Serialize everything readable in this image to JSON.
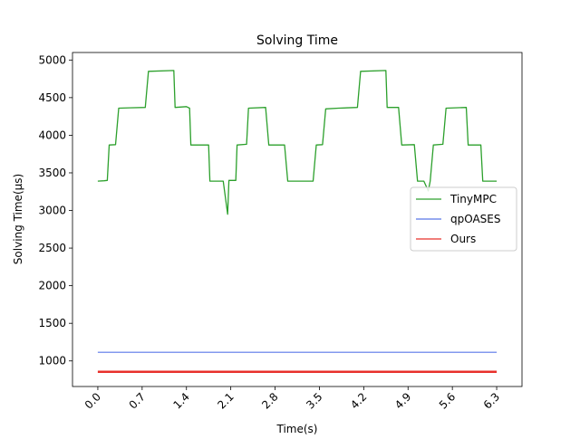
{
  "chart_data": {
    "type": "line",
    "title": "Solving Time",
    "xlabel": "Time(s)",
    "ylabel": "Solving Time(μs)",
    "xlim": [
      -0.4,
      6.7
    ],
    "ylim": [
      660,
      5100
    ],
    "x_ticks": [
      "0.0",
      "0.7",
      "1.4",
      "2.1",
      "2.8",
      "3.5",
      "4.2",
      "4.9",
      "5.6",
      "6.3"
    ],
    "y_ticks": [
      "1000",
      "1500",
      "2000",
      "2500",
      "3000",
      "3500",
      "4000",
      "4500",
      "5000"
    ],
    "grid": false,
    "legend_position": "center-right",
    "series": [
      {
        "name": "TinyMPC",
        "color": "#2ca02c",
        "points": [
          [
            0.0,
            3390
          ],
          [
            0.1,
            3395
          ],
          [
            0.15,
            3400
          ],
          [
            0.18,
            3870
          ],
          [
            0.28,
            3875
          ],
          [
            0.33,
            4360
          ],
          [
            0.5,
            4365
          ],
          [
            0.75,
            4370
          ],
          [
            0.8,
            4850
          ],
          [
            1.2,
            4860
          ],
          [
            1.22,
            4370
          ],
          [
            1.4,
            4380
          ],
          [
            1.45,
            4360
          ],
          [
            1.47,
            3870
          ],
          [
            1.75,
            3870
          ],
          [
            1.77,
            3390
          ],
          [
            1.98,
            3390
          ],
          [
            2.05,
            2950
          ],
          [
            2.07,
            3400
          ],
          [
            2.18,
            3400
          ],
          [
            2.2,
            3870
          ],
          [
            2.35,
            3880
          ],
          [
            2.38,
            4360
          ],
          [
            2.65,
            4370
          ],
          [
            2.7,
            3870
          ],
          [
            2.95,
            3870
          ],
          [
            3.0,
            3390
          ],
          [
            3.4,
            3390
          ],
          [
            3.45,
            3870
          ],
          [
            3.55,
            3875
          ],
          [
            3.6,
            4350
          ],
          [
            3.8,
            4360
          ],
          [
            4.1,
            4370
          ],
          [
            4.15,
            4850
          ],
          [
            4.55,
            4860
          ],
          [
            4.57,
            4370
          ],
          [
            4.75,
            4370
          ],
          [
            4.8,
            3870
          ],
          [
            5.0,
            3875
          ],
          [
            5.05,
            3390
          ],
          [
            5.15,
            3390
          ],
          [
            5.22,
            3260
          ],
          [
            5.25,
            3390
          ],
          [
            5.3,
            3870
          ],
          [
            5.45,
            3880
          ],
          [
            5.5,
            4360
          ],
          [
            5.82,
            4370
          ],
          [
            5.85,
            3870
          ],
          [
            6.05,
            3870
          ],
          [
            6.08,
            3390
          ],
          [
            6.3,
            3390
          ]
        ]
      },
      {
        "name": "qpOASES",
        "color": "#5976e8",
        "points": [
          [
            0.0,
            1115
          ],
          [
            6.3,
            1115
          ]
        ]
      },
      {
        "name": "Ours",
        "color": "#e8302b",
        "points": [
          [
            0.0,
            855
          ],
          [
            6.3,
            855
          ]
        ]
      }
    ]
  }
}
